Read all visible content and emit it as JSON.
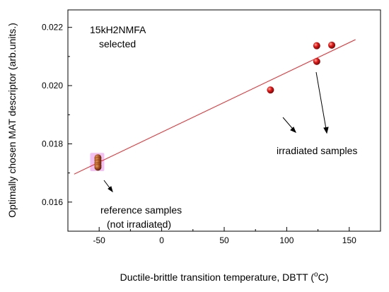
{
  "chart_data": {
    "type": "scatter",
    "xlabel_main": "Ductile-brittle transition temperature, DBTT (",
    "xlabel_sup": "o",
    "xlabel_end": "C)",
    "ylabel": "Optimally chosen  MAT descriptor (arb.units.)",
    "xlim": [
      -75,
      175
    ],
    "ylim": [
      0.015,
      0.0226
    ],
    "xticks": [
      "-50",
      "0",
      "50",
      "100",
      "150"
    ],
    "yticks": [
      "0.016",
      "0.018",
      "0.020",
      "0.022"
    ],
    "xtick_values": [
      -50,
      0,
      50,
      100,
      150
    ],
    "ytick_values": [
      0.016,
      0.018,
      0.02,
      0.022
    ],
    "xminor_values": [
      -75,
      -25,
      25,
      75,
      125,
      175
    ],
    "yminor_values": [
      0.015,
      0.017,
      0.019,
      0.021
    ],
    "series": [
      {
        "points": [
          {
            "x": -51,
            "y": 0.01752
          },
          {
            "x": -51,
            "y": 0.01744
          },
          {
            "x": -51,
            "y": 0.01735
          },
          {
            "x": -51,
            "y": 0.01726
          },
          {
            "x": -51,
            "y": 0.0172
          },
          {
            "x": 87,
            "y": 0.01985
          },
          {
            "x": 124,
            "y": 0.02083
          },
          {
            "x": 124,
            "y": 0.02137
          },
          {
            "x": 136,
            "y": 0.02139
          }
        ],
        "color": "#e01a1a"
      }
    ],
    "fit_line": {
      "x": [
        -70,
        155
      ],
      "y": [
        0.01696,
        0.02158
      ],
      "color": "#e8262a"
    },
    "highlight_color": "#e88ee8",
    "annotations": {
      "title1": "15kH2NMFA",
      "title2": "selected",
      "irradiated": "irradiated samples",
      "reference1": "reference samples",
      "reference2": "(not irradiated)"
    }
  }
}
